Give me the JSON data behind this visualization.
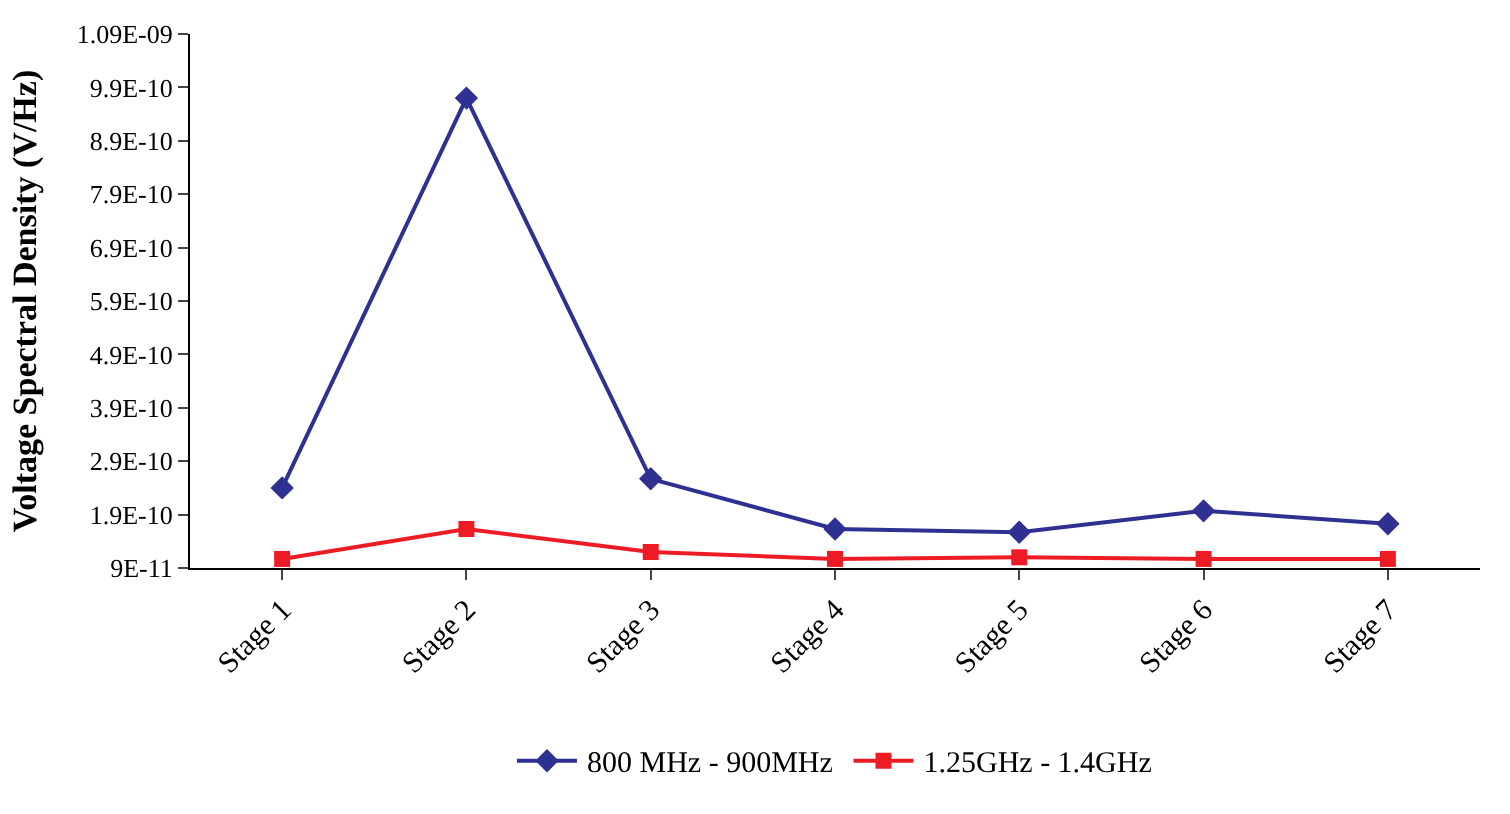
{
  "chart_data": {
    "type": "line",
    "ylabel": "Voltage Spectral Density (V/Hz)",
    "categories": [
      "Stage 1",
      "Stage 2",
      "Stage 3",
      "Stage 4",
      "Stage 5",
      "Stage 6",
      "Stage 7"
    ],
    "series": [
      {
        "name": "800 MHz - 900MHz",
        "color": "#2e3192",
        "marker": "diamond",
        "values": [
          2.4e-10,
          9.7e-10,
          2.57e-10,
          1.63e-10,
          1.57e-10,
          1.97e-10,
          1.73e-10
        ]
      },
      {
        "name": "1.25GHz - 1.4GHz",
        "color": "#ed1c24",
        "marker": "square",
        "values": [
          1.07e-10,
          1.63e-10,
          1.2e-10,
          1.07e-10,
          1.1e-10,
          1.07e-10,
          1.07e-10
        ]
      }
    ],
    "ylim": [
      9e-11,
      1.09e-09
    ],
    "yticks": [
      {
        "value": 9e-11,
        "label": "9E-11"
      },
      {
        "value": 1.9e-10,
        "label": "1.9E-10"
      },
      {
        "value": 2.9e-10,
        "label": "2.9E-10"
      },
      {
        "value": 3.9e-10,
        "label": "3.9E-10"
      },
      {
        "value": 4.9e-10,
        "label": "4.9E-10"
      },
      {
        "value": 5.9e-10,
        "label": "5.9E-10"
      },
      {
        "value": 6.9e-10,
        "label": "6.9E-10"
      },
      {
        "value": 7.9e-10,
        "label": "7.9E-10"
      },
      {
        "value": 8.9e-10,
        "label": "8.9E-10"
      },
      {
        "value": 9.9e-10,
        "label": "9.9E-10"
      },
      {
        "value": 1.09e-09,
        "label": "1.09E-09"
      }
    ],
    "legend": "bottom",
    "line_style": "solid"
  }
}
